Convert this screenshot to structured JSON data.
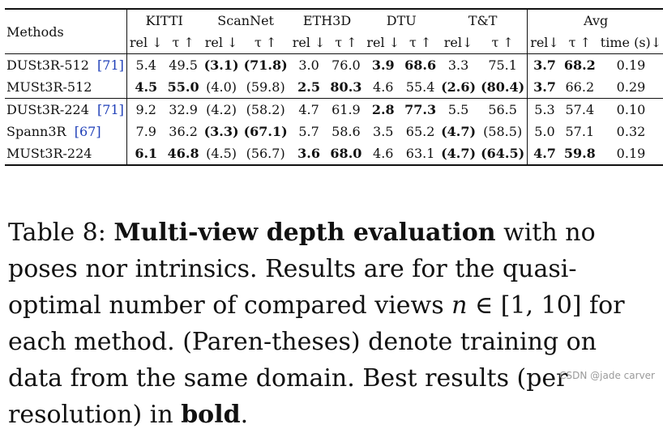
{
  "table": {
    "header": {
      "methods": "Methods",
      "groups": [
        "KITTI",
        "ScanNet",
        "ETH3D",
        "DTU",
        "T&T",
        "Avg"
      ],
      "subheaders": [
        "rel ↓",
        "τ ↑",
        "rel ↓",
        "τ ↑",
        "rel ↓",
        "τ ↑",
        "rel ↓",
        "τ ↑",
        "rel↓",
        "τ ↑",
        "rel↓",
        "τ ↑",
        "time (s)↓"
      ]
    },
    "rows": [
      {
        "method": "DUSt3R-512",
        "cite": "[71]",
        "cells": [
          {
            "t": "5.4",
            "b": false
          },
          {
            "t": "49.5",
            "b": false
          },
          {
            "t": "(3.1)",
            "b": true
          },
          {
            "t": "(71.8)",
            "b": true
          },
          {
            "t": "3.0",
            "b": false
          },
          {
            "t": "76.0",
            "b": false
          },
          {
            "t": "3.9",
            "b": true
          },
          {
            "t": "68.6",
            "b": true
          },
          {
            "t": "3.3",
            "b": false
          },
          {
            "t": "75.1",
            "b": false
          },
          {
            "t": "3.7",
            "b": true
          },
          {
            "t": "68.2",
            "b": true
          },
          {
            "t": "0.19",
            "b": false
          }
        ]
      },
      {
        "method": "MUSt3R-512",
        "cite": "",
        "cells": [
          {
            "t": "4.5",
            "b": true
          },
          {
            "t": "55.0",
            "b": true
          },
          {
            "t": "(4.0)",
            "b": false
          },
          {
            "t": "(59.8)",
            "b": false
          },
          {
            "t": "2.5",
            "b": true
          },
          {
            "t": "80.3",
            "b": true
          },
          {
            "t": "4.6",
            "b": false
          },
          {
            "t": "55.4",
            "b": false
          },
          {
            "t": "(2.6)",
            "b": true
          },
          {
            "t": "(80.4)",
            "b": true
          },
          {
            "t": "3.7",
            "b": true
          },
          {
            "t": "66.2",
            "b": false
          },
          {
            "t": "0.29",
            "b": false
          }
        ]
      },
      {
        "method": "DUSt3R-224",
        "cite": "[71]",
        "cells": [
          {
            "t": "9.2",
            "b": false
          },
          {
            "t": "32.9",
            "b": false
          },
          {
            "t": "(4.2)",
            "b": false
          },
          {
            "t": "(58.2)",
            "b": false
          },
          {
            "t": "4.7",
            "b": false
          },
          {
            "t": "61.9",
            "b": false
          },
          {
            "t": "2.8",
            "b": true
          },
          {
            "t": "77.3",
            "b": true
          },
          {
            "t": "5.5",
            "b": false
          },
          {
            "t": "56.5",
            "b": false
          },
          {
            "t": "5.3",
            "b": false
          },
          {
            "t": "57.4",
            "b": false
          },
          {
            "t": "0.10",
            "b": false
          }
        ]
      },
      {
        "method": "Spann3R",
        "cite": "[67]",
        "cells": [
          {
            "t": "7.9",
            "b": false
          },
          {
            "t": "36.2",
            "b": false
          },
          {
            "t": "(3.3)",
            "b": true
          },
          {
            "t": "(67.1)",
            "b": true
          },
          {
            "t": "5.7",
            "b": false
          },
          {
            "t": "58.6",
            "b": false
          },
          {
            "t": "3.5",
            "b": false
          },
          {
            "t": "65.2",
            "b": false
          },
          {
            "t": "(4.7)",
            "b": true
          },
          {
            "t": "(58.5)",
            "b": false
          },
          {
            "t": "5.0",
            "b": false
          },
          {
            "t": "57.1",
            "b": false
          },
          {
            "t": "0.32",
            "b": false
          }
        ]
      },
      {
        "method": "MUSt3R-224",
        "cite": "",
        "cells": [
          {
            "t": "6.1",
            "b": true
          },
          {
            "t": "46.8",
            "b": true
          },
          {
            "t": "(4.5)",
            "b": false
          },
          {
            "t": "(56.7)",
            "b": false
          },
          {
            "t": "3.6",
            "b": true
          },
          {
            "t": "68.0",
            "b": true
          },
          {
            "t": "4.6",
            "b": false
          },
          {
            "t": "63.1",
            "b": false
          },
          {
            "t": "(4.7)",
            "b": true
          },
          {
            "t": "(64.5)",
            "b": true
          },
          {
            "t": "4.7",
            "b": true
          },
          {
            "t": "59.8",
            "b": true
          },
          {
            "t": "0.19",
            "b": false
          }
        ]
      }
    ]
  },
  "caption": {
    "label": "Table 8: ",
    "bold_title": "Multi-view depth evaluation",
    "text1": " with no poses nor intrinsics. Results are for the quasi-optimal number of compared views ",
    "math": "n",
    "text2": " ∈ [1, 10] for each method. (Paren-theses) denote training on data from the same domain. Best results (per resolution) in ",
    "bold_word": "bold",
    "end": "."
  },
  "watermark": "CSDN @jade carver"
}
